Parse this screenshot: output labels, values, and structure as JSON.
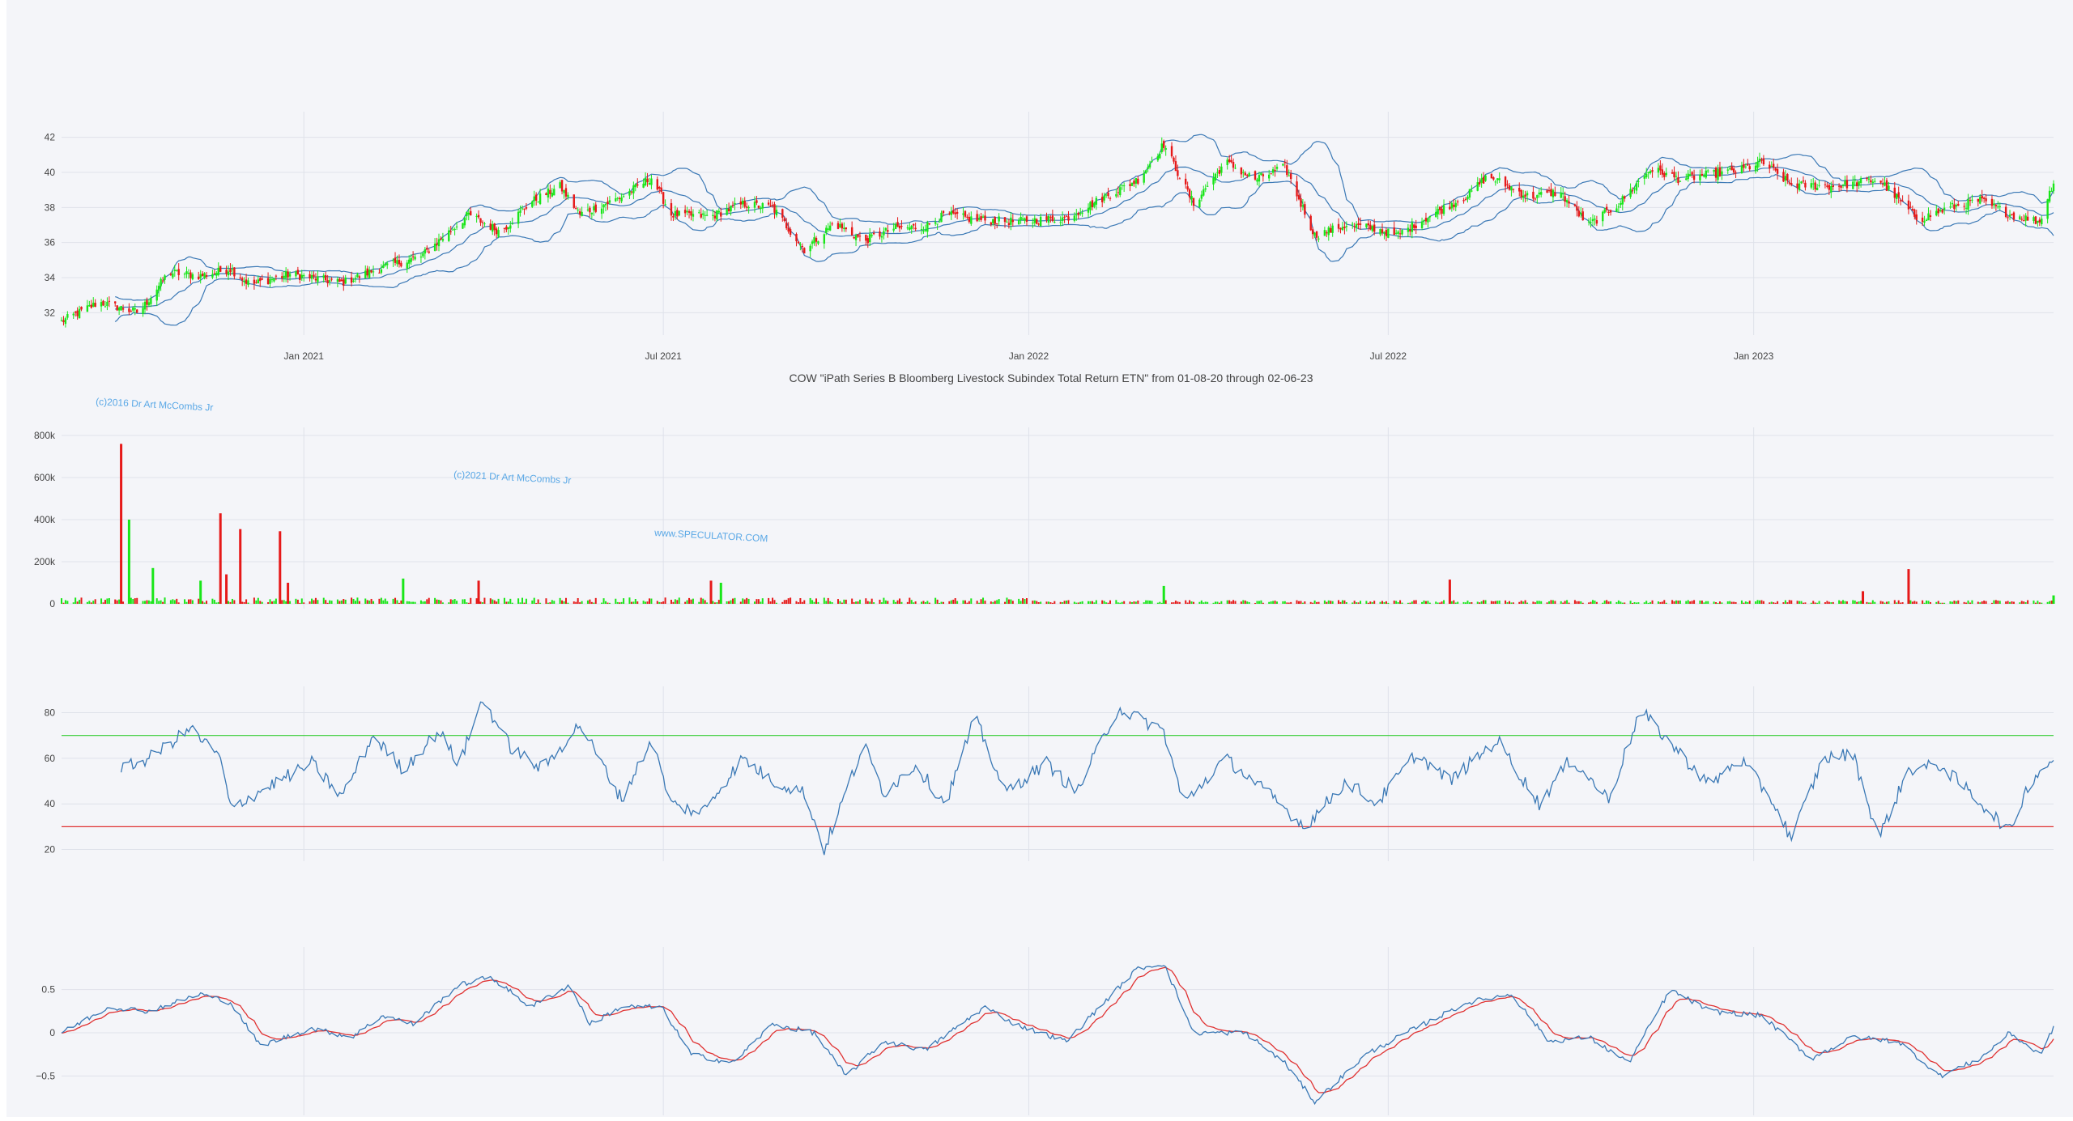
{
  "chart_data": {
    "ticker": "COW",
    "title": "COW \"iPath Series B Bloomberg Livestock Subindex Total Return ETN\" from 01-08-20 through 02-06-23",
    "watermarks": [
      "(c)2016 Dr Art McCombs Jr",
      "(c)2021 Dr Art McCombs Jr",
      "www.SPECULATOR.COM"
    ],
    "x_start": "2020-09-01",
    "x_end": "2023-06-01",
    "x_ticks": [
      {
        "date": "2021-01-01",
        "label": "Jan 2021"
      },
      {
        "date": "2021-07-01",
        "label": "Jul 2021"
      },
      {
        "date": "2022-01-01",
        "label": "Jan 2022"
      },
      {
        "date": "2022-07-01",
        "label": "Jul 2022"
      },
      {
        "date": "2023-01-01",
        "label": "Jan 2023"
      }
    ],
    "colors": {
      "up": "#19e619",
      "down": "#e61919",
      "line": "#3a78b5",
      "signal": "#e03232",
      "overbought": "#33cc33",
      "oversold": "#e03232",
      "grid": "#dfe2ea",
      "text": "#444444",
      "watermark": "#5aa8e6"
    },
    "panels": [
      {
        "id": "price",
        "type": "candlestick",
        "series": [
          "OHLC",
          "Bollinger Bands"
        ],
        "ylim": [
          31,
          43
        ],
        "y_ticks": [
          32,
          34,
          36,
          38,
          40,
          42
        ],
        "y_tick_labels": [
          "32",
          "34",
          "36",
          "38",
          "40",
          "42"
        ],
        "close_path": [
          [
            "2020-09-01",
            31.5
          ],
          [
            "2020-09-20",
            32.6
          ],
          [
            "2020-10-10",
            32.0
          ],
          [
            "2020-10-25",
            34.3
          ],
          [
            "2020-11-10",
            34.1
          ],
          [
            "2020-11-25",
            34.5
          ],
          [
            "2020-12-05",
            33.6
          ],
          [
            "2020-12-25",
            34.2
          ],
          [
            "2021-01-20",
            33.7
          ],
          [
            "2021-02-10",
            34.6
          ],
          [
            "2021-03-01",
            35.2
          ],
          [
            "2021-03-25",
            37.6
          ],
          [
            "2021-04-10",
            36.6
          ],
          [
            "2021-04-25",
            38.3
          ],
          [
            "2021-05-10",
            39.2
          ],
          [
            "2021-05-20",
            37.6
          ],
          [
            "2021-06-10",
            38.6
          ],
          [
            "2021-06-25",
            39.7
          ],
          [
            "2021-07-05",
            37.6
          ],
          [
            "2021-07-25",
            37.5
          ],
          [
            "2021-08-10",
            38.2
          ],
          [
            "2021-08-25",
            38.0
          ],
          [
            "2021-09-10",
            35.6
          ],
          [
            "2021-09-25",
            37.1
          ],
          [
            "2021-10-10",
            36.1
          ],
          [
            "2021-10-25",
            36.8
          ],
          [
            "2021-11-10",
            36.9
          ],
          [
            "2021-11-20",
            37.6
          ],
          [
            "2021-12-05",
            37.3
          ],
          [
            "2021-12-25",
            37.2
          ],
          [
            "2022-01-20",
            37.4
          ],
          [
            "2022-02-05",
            38.4
          ],
          [
            "2022-02-25",
            39.6
          ],
          [
            "2022-03-10",
            41.6
          ],
          [
            "2022-03-25",
            38.2
          ],
          [
            "2022-04-10",
            40.6
          ],
          [
            "2022-04-25",
            39.6
          ],
          [
            "2022-05-10",
            40.3
          ],
          [
            "2022-05-25",
            36.4
          ],
          [
            "2022-06-10",
            37.0
          ],
          [
            "2022-06-25",
            36.8
          ],
          [
            "2022-07-05",
            36.4
          ],
          [
            "2022-07-20",
            37.4
          ],
          [
            "2022-08-10",
            38.7
          ],
          [
            "2022-08-20",
            39.8
          ],
          [
            "2022-09-10",
            38.6
          ],
          [
            "2022-09-25",
            38.9
          ],
          [
            "2022-10-10",
            37.0
          ],
          [
            "2022-10-25",
            38.2
          ],
          [
            "2022-11-10",
            40.2
          ],
          [
            "2022-11-25",
            39.6
          ],
          [
            "2022-12-10",
            39.9
          ],
          [
            "2022-12-25",
            40.1
          ],
          [
            "2023-01-05",
            40.6
          ],
          [
            "2023-01-20",
            39.3
          ],
          [
            "2023-02-10",
            39.2
          ],
          [
            "2023-03-05",
            39.6
          ],
          [
            "2023-03-25",
            37.3
          ],
          [
            "2023-04-10",
            38.0
          ],
          [
            "2023-04-25",
            38.4
          ],
          [
            "2023-05-10",
            37.6
          ],
          [
            "2023-05-25",
            37.2
          ],
          [
            "2023-06-01",
            39.5
          ]
        ]
      },
      {
        "id": "volume",
        "type": "bar",
        "ylim": [
          0,
          800000
        ],
        "y_ticks": [
          0,
          200000,
          400000,
          600000,
          800000
        ],
        "y_tick_labels": [
          "0",
          "200k",
          "400k",
          "600k",
          "800k"
        ],
        "spikes": [
          [
            "2020-10-01",
            760000,
            "down"
          ],
          [
            "2020-10-05",
            400000,
            "up"
          ],
          [
            "2020-10-17",
            170000,
            "up"
          ],
          [
            "2020-11-10",
            110000,
            "up"
          ],
          [
            "2020-11-20",
            430000,
            "down"
          ],
          [
            "2020-11-23",
            140000,
            "down"
          ],
          [
            "2020-11-30",
            355000,
            "down"
          ],
          [
            "2020-12-20",
            345000,
            "down"
          ],
          [
            "2020-12-24",
            100000,
            "down"
          ],
          [
            "2021-02-20",
            120000,
            "up"
          ],
          [
            "2021-03-30",
            110000,
            "down"
          ],
          [
            "2021-07-25",
            110000,
            "down"
          ],
          [
            "2021-07-30",
            100000,
            "up"
          ],
          [
            "2022-03-10",
            85000,
            "up"
          ],
          [
            "2022-08-01",
            115000,
            "down"
          ],
          [
            "2023-02-25",
            60000,
            "down"
          ],
          [
            "2023-03-20",
            165000,
            "down"
          ],
          [
            "2023-06-01",
            40000,
            "up"
          ]
        ]
      },
      {
        "id": "rsi",
        "type": "line",
        "ylim": [
          17,
          88
        ],
        "y_ticks": [
          20,
          40,
          60,
          80
        ],
        "y_tick_labels": [
          "20",
          "40",
          "60",
          "80"
        ],
        "levels": [
          70,
          30
        ],
        "path": [
          [
            "2020-10-01",
            55
          ],
          [
            "2020-10-15",
            60
          ],
          [
            "2020-11-05",
            73
          ],
          [
            "2020-11-20",
            60
          ],
          [
            "2020-11-25",
            38
          ],
          [
            "2020-12-15",
            48
          ],
          [
            "2021-01-05",
            58
          ],
          [
            "2021-01-20",
            43
          ],
          [
            "2021-02-05",
            70
          ],
          [
            "2021-02-20",
            55
          ],
          [
            "2021-03-10",
            72
          ],
          [
            "2021-03-20",
            57
          ],
          [
            "2021-04-01",
            86
          ],
          [
            "2021-04-15",
            65
          ],
          [
            "2021-05-01",
            55
          ],
          [
            "2021-05-20",
            75
          ],
          [
            "2021-06-10",
            42
          ],
          [
            "2021-06-25",
            68
          ],
          [
            "2021-07-05",
            40
          ],
          [
            "2021-07-20",
            36
          ],
          [
            "2021-08-10",
            60
          ],
          [
            "2021-08-25",
            50
          ],
          [
            "2021-09-10",
            45
          ],
          [
            "2021-09-20",
            20
          ],
          [
            "2021-10-10",
            66
          ],
          [
            "2021-10-20",
            45
          ],
          [
            "2021-11-05",
            57
          ],
          [
            "2021-11-20",
            40
          ],
          [
            "2021-12-05",
            78
          ],
          [
            "2021-12-20",
            45
          ],
          [
            "2022-01-10",
            58
          ],
          [
            "2022-01-25",
            45
          ],
          [
            "2022-02-15",
            82
          ],
          [
            "2022-03-10",
            72
          ],
          [
            "2022-03-20",
            40
          ],
          [
            "2022-04-10",
            60
          ],
          [
            "2022-05-01",
            45
          ],
          [
            "2022-05-20",
            30
          ],
          [
            "2022-06-10",
            50
          ],
          [
            "2022-06-25",
            40
          ],
          [
            "2022-07-15",
            62
          ],
          [
            "2022-08-01",
            50
          ],
          [
            "2022-08-25",
            68
          ],
          [
            "2022-09-15",
            40
          ],
          [
            "2022-10-01",
            60
          ],
          [
            "2022-10-20",
            42
          ],
          [
            "2022-11-05",
            81
          ],
          [
            "2022-11-25",
            62
          ],
          [
            "2022-12-10",
            48
          ],
          [
            "2022-12-25",
            60
          ],
          [
            "2023-01-10",
            42
          ],
          [
            "2023-01-20",
            25
          ],
          [
            "2023-02-05",
            60
          ],
          [
            "2023-02-20",
            62
          ],
          [
            "2023-03-05",
            25
          ],
          [
            "2023-03-20",
            55
          ],
          [
            "2023-04-05",
            57
          ],
          [
            "2023-04-20",
            45
          ],
          [
            "2023-05-10",
            28
          ],
          [
            "2023-05-20",
            50
          ],
          [
            "2023-06-01",
            60
          ]
        ]
      },
      {
        "id": "macd",
        "type": "line",
        "ylim": [
          -0.9,
          0.9
        ],
        "y_ticks": [
          -0.5,
          0,
          0.5
        ],
        "y_tick_labels": [
          "−0.5",
          "0",
          "0.5"
        ],
        "macd_path": [
          [
            "2020-09-01",
            0.0
          ],
          [
            "2020-09-25",
            0.3
          ],
          [
            "2020-10-15",
            0.25
          ],
          [
            "2020-11-10",
            0.45
          ],
          [
            "2020-11-25",
            0.35
          ],
          [
            "2020-12-10",
            -0.15
          ],
          [
            "2021-01-05",
            0.05
          ],
          [
            "2021-01-25",
            -0.05
          ],
          [
            "2021-02-10",
            0.2
          ],
          [
            "2021-02-25",
            0.1
          ],
          [
            "2021-03-20",
            0.55
          ],
          [
            "2021-04-05",
            0.65
          ],
          [
            "2021-04-25",
            0.3
          ],
          [
            "2021-05-15",
            0.55
          ],
          [
            "2021-05-25",
            0.1
          ],
          [
            "2021-06-10",
            0.3
          ],
          [
            "2021-06-30",
            0.3
          ],
          [
            "2021-07-15",
            -0.25
          ],
          [
            "2021-08-05",
            -0.35
          ],
          [
            "2021-08-25",
            0.1
          ],
          [
            "2021-09-15",
            0.0
          ],
          [
            "2021-10-01",
            -0.5
          ],
          [
            "2021-10-20",
            -0.1
          ],
          [
            "2021-11-10",
            -0.2
          ],
          [
            "2021-12-10",
            0.3
          ],
          [
            "2021-12-25",
            0.1
          ],
          [
            "2022-01-20",
            -0.1
          ],
          [
            "2022-02-10",
            0.4
          ],
          [
            "2022-02-25",
            0.75
          ],
          [
            "2022-03-10",
            0.8
          ],
          [
            "2022-03-25",
            0.0
          ],
          [
            "2022-04-20",
            0.0
          ],
          [
            "2022-05-10",
            -0.35
          ],
          [
            "2022-05-25",
            -0.8
          ],
          [
            "2022-06-20",
            -0.25
          ],
          [
            "2022-07-10",
            0.0
          ],
          [
            "2022-08-10",
            0.35
          ],
          [
            "2022-09-01",
            0.45
          ],
          [
            "2022-09-20",
            -0.1
          ],
          [
            "2022-10-10",
            -0.05
          ],
          [
            "2022-10-30",
            -0.35
          ],
          [
            "2022-11-20",
            0.5
          ],
          [
            "2022-12-10",
            0.25
          ],
          [
            "2023-01-05",
            0.2
          ],
          [
            "2023-01-30",
            -0.3
          ],
          [
            "2023-02-20",
            -0.05
          ],
          [
            "2023-03-15",
            -0.1
          ],
          [
            "2023-04-05",
            -0.5
          ],
          [
            "2023-04-25",
            -0.3
          ],
          [
            "2023-05-10",
            0.0
          ],
          [
            "2023-05-25",
            -0.25
          ],
          [
            "2023-06-01",
            0.05
          ]
        ]
      }
    ]
  }
}
